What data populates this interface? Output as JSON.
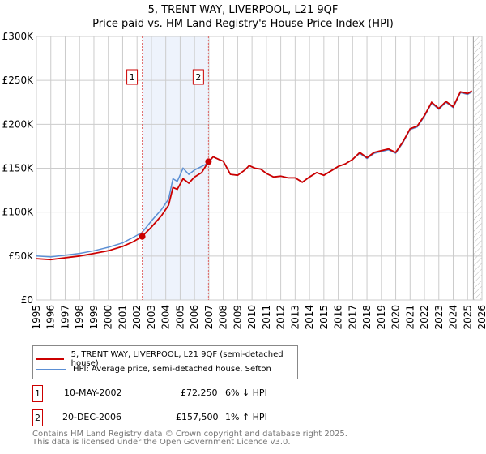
{
  "title": "5, TRENT WAY, LIVERPOOL, L21 9QF",
  "subtitle": "Price paid vs. HM Land Registry's House Price Index (HPI)",
  "colors": {
    "property": "#cc0000",
    "hpi": "#5b8fd4",
    "shade": "#eef3fc",
    "grid": "#cccccc"
  },
  "chart_data": {
    "type": "line",
    "title": "Price paid vs. HM Land Registry's House Price Index (HPI)",
    "xlim": [
      1995,
      2026
    ],
    "ylim": [
      0,
      300000
    ],
    "y_ticks": [
      0,
      50000,
      100000,
      150000,
      200000,
      250000,
      300000
    ],
    "y_tick_labels": [
      "£0",
      "£50K",
      "£100K",
      "£150K",
      "£200K",
      "£250K",
      "£300K"
    ],
    "x_ticks": [
      "1995",
      "1996",
      "1997",
      "1998",
      "1999",
      "2000",
      "2001",
      "2002",
      "2003",
      "2004",
      "2005",
      "2006",
      "2007",
      "2008",
      "2009",
      "2010",
      "2011",
      "2012",
      "2013",
      "2014",
      "2015",
      "2016",
      "2017",
      "2018",
      "2019",
      "2020",
      "2021",
      "2022",
      "2023",
      "2024",
      "2025",
      "2026"
    ],
    "grid": true,
    "shaded_range": [
      2002.36,
      2006.97
    ],
    "hatched_from": 2025.4,
    "series": [
      {
        "name": "5, TRENT WAY, LIVERPOOL, L21 9QF (semi-detached house)",
        "x": [
          1995,
          1996,
          1997,
          1998,
          1999,
          2000,
          2001,
          2001.7,
          2002.36,
          2003,
          2003.7,
          2004.2,
          2004.5,
          2004.8,
          2005.2,
          2005.6,
          2006,
          2006.5,
          2006.97,
          2007.3,
          2007.7,
          2008,
          2008.5,
          2009,
          2009.5,
          2009.8,
          2010.2,
          2010.6,
          2011,
          2011.5,
          2012,
          2012.5,
          2013,
          2013.5,
          2014,
          2014.5,
          2015,
          2015.5,
          2016,
          2016.5,
          2017,
          2017.5,
          2018,
          2018.5,
          2019,
          2019.5,
          2020,
          2020.5,
          2021,
          2021.5,
          2022,
          2022.5,
          2023,
          2023.5,
          2024,
          2024.5,
          2025,
          2025.3
        ],
        "values": [
          47000,
          46000,
          48000,
          50000,
          53000,
          56000,
          61000,
          66000,
          72250,
          83000,
          96000,
          108000,
          128000,
          126000,
          138000,
          133000,
          140000,
          145000,
          157500,
          163000,
          160000,
          158000,
          143000,
          142000,
          148000,
          153000,
          150000,
          149000,
          144000,
          140000,
          141000,
          139000,
          139000,
          134000,
          140000,
          145000,
          142000,
          147000,
          152000,
          155000,
          160000,
          168000,
          162000,
          168000,
          170000,
          172000,
          168000,
          180000,
          195000,
          198000,
          210000,
          225000,
          218000,
          226000,
          220000,
          237000,
          235000,
          238000
        ]
      },
      {
        "name": "HPI: Average price, semi-detached house, Sefton",
        "x": [
          1995,
          1996,
          1997,
          1998,
          1999,
          2000,
          2001,
          2001.7,
          2002.36,
          2003,
          2003.7,
          2004.2,
          2004.5,
          2004.8,
          2005.2,
          2005.6,
          2006,
          2006.5,
          2006.97,
          2007.3,
          2007.7,
          2008,
          2008.5,
          2009,
          2009.5,
          2009.8,
          2010.2,
          2010.6,
          2011,
          2011.5,
          2012,
          2012.5,
          2013,
          2013.5,
          2014,
          2014.5,
          2015,
          2015.5,
          2016,
          2016.5,
          2017,
          2017.5,
          2018,
          2018.5,
          2019,
          2019.5,
          2020,
          2020.5,
          2021,
          2021.5,
          2022,
          2022.5,
          2023,
          2023.5,
          2024,
          2024.5,
          2025,
          2025.3
        ],
        "values": [
          50000,
          49000,
          51000,
          53000,
          56000,
          60000,
          65000,
          71000,
          77000,
          90000,
          103000,
          115000,
          138000,
          135000,
          150000,
          143000,
          148000,
          152000,
          156000,
          163000,
          160000,
          158000,
          143000,
          142000,
          148000,
          153000,
          150000,
          149000,
          144000,
          140000,
          141000,
          139000,
          139000,
          134000,
          140000,
          145000,
          142000,
          147000,
          152000,
          155000,
          160000,
          167000,
          161000,
          167000,
          169000,
          171000,
          167000,
          179000,
          194000,
          197000,
          209000,
          224000,
          217000,
          225000,
          219000,
          236000,
          234000,
          237000
        ]
      }
    ]
  },
  "markers": [
    {
      "label": "1",
      "x": 2002.36,
      "y": 72250
    },
    {
      "label": "2",
      "x": 2006.97,
      "y": 157500
    }
  ],
  "legend": {
    "property": "5, TRENT WAY, LIVERPOOL, L21 9QF (semi-detached house)",
    "hpi": "HPI: Average price, semi-detached house, Sefton"
  },
  "transactions": [
    {
      "num": "1",
      "date": "10-MAY-2002",
      "price": "£72,250",
      "hpi": "6% ↓ HPI"
    },
    {
      "num": "2",
      "date": "20-DEC-2006",
      "price": "£157,500",
      "hpi": "1% ↑ HPI"
    }
  ],
  "footer": {
    "line1": "Contains HM Land Registry data © Crown copyright and database right 2025.",
    "line2": "This data is licensed under the Open Government Licence v3.0."
  }
}
